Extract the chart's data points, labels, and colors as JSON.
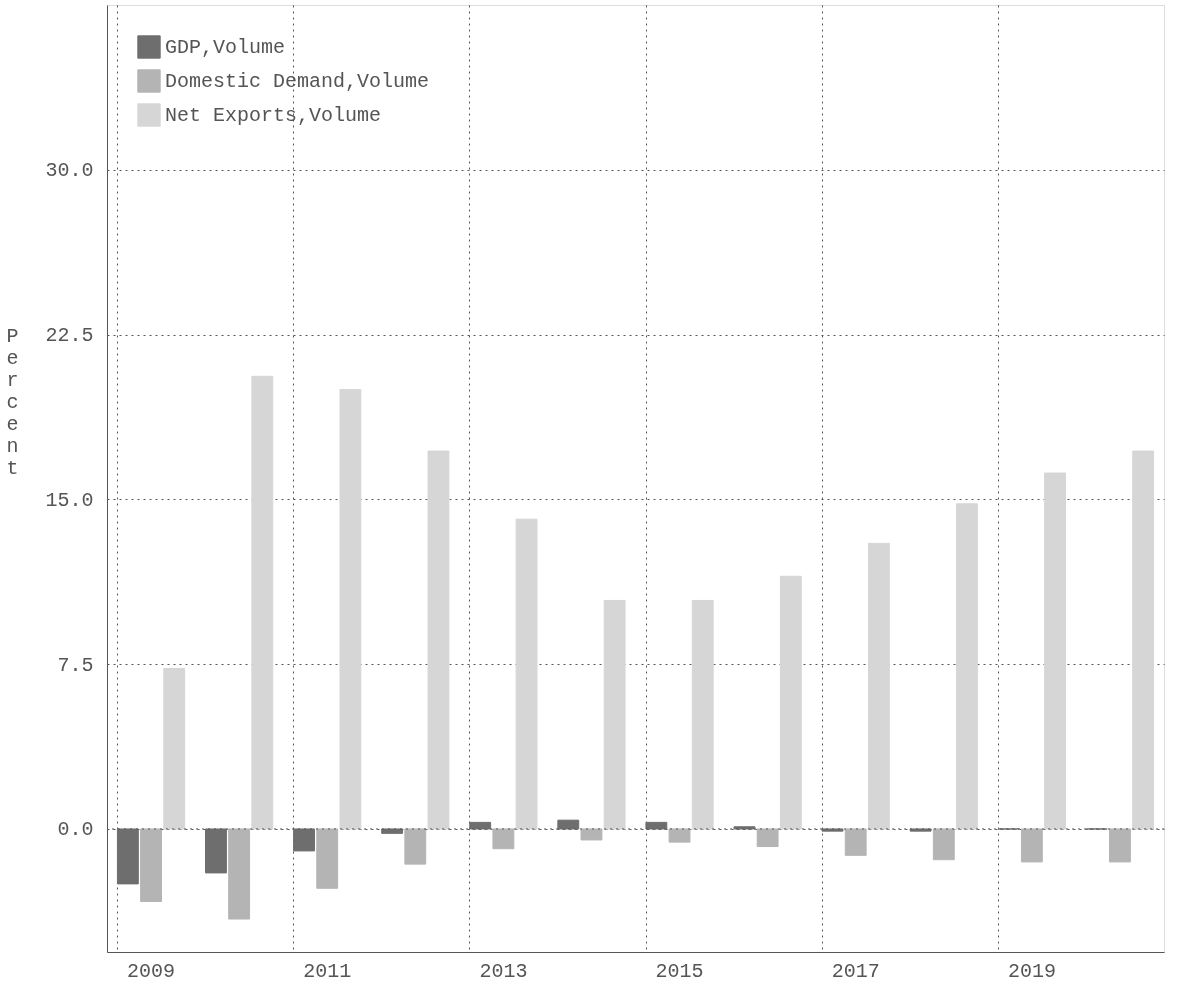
{
  "chart_data": {
    "type": "bar",
    "categories": [
      "2009",
      null,
      "2011",
      null,
      "2013",
      null,
      "2015",
      null,
      "2017",
      null,
      "2019",
      null
    ],
    "ylabel": "Percent",
    "series": [
      {
        "name": "GDP,Volume",
        "color": "#6e6e6e",
        "values": [
          -2.5,
          -2.0,
          -1.0,
          -0.2,
          0.3,
          0.4,
          0.3,
          0.1,
          -0.1,
          -0.1,
          0.0,
          0.0
        ]
      },
      {
        "name": "Domestic Demand,Volume",
        "color": "#b4b4b4",
        "values": [
          -3.3,
          -4.1,
          -2.7,
          -1.6,
          -0.9,
          -0.5,
          -0.6,
          -0.8,
          -1.2,
          -1.4,
          -1.5,
          -1.5
        ]
      },
      {
        "name": "Net Exports,Volume",
        "color": "#d6d6d6",
        "values": [
          7.3,
          20.6,
          20.0,
          17.2,
          14.1,
          10.4,
          10.4,
          11.5,
          13.0,
          14.8,
          16.2,
          17.2
        ]
      }
    ],
    "ylim": [
      -5.6,
      37.5
    ],
    "yticks": [
      {
        "value": 0,
        "label": "0.0"
      },
      {
        "value": 7.5,
        "label": "7.5"
      },
      {
        "value": 15,
        "label": "15.0"
      },
      {
        "value": 22.5,
        "label": "22.5"
      },
      {
        "value": 30,
        "label": "30.0"
      }
    ],
    "grid": true,
    "legend": "top left"
  }
}
